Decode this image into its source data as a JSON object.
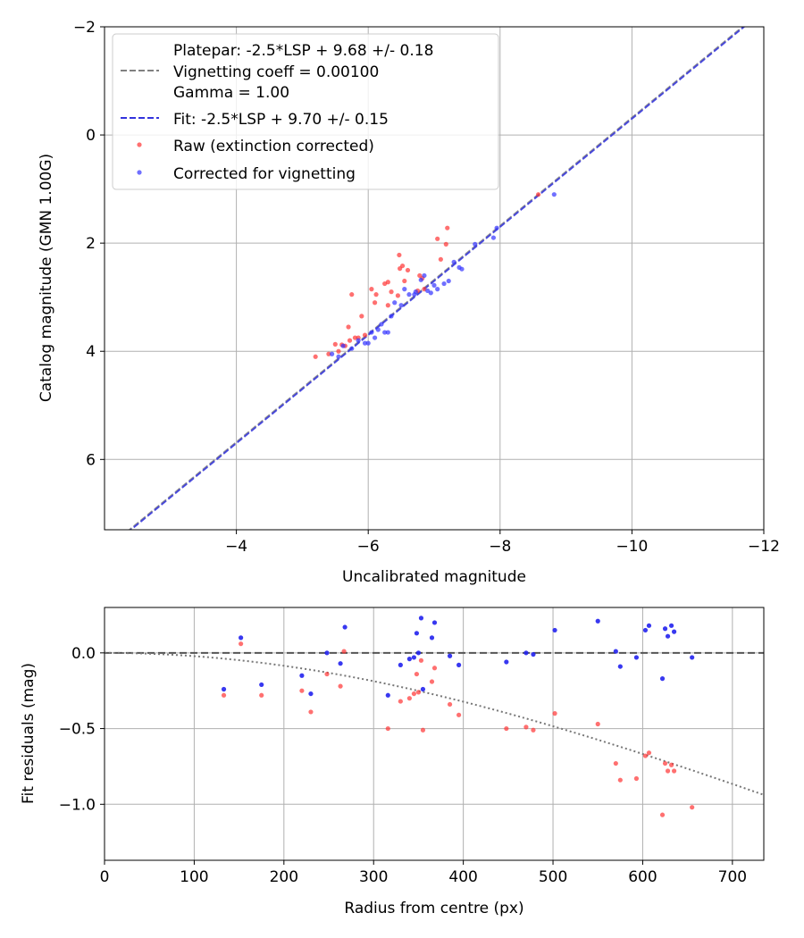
{
  "chart_data": [
    {
      "type": "scatter",
      "xlabel": "Uncalibrated magnitude",
      "ylabel": "Catalog magnitude (GMN 1.00G)",
      "xlim": [
        -2,
        -12
      ],
      "ylim": [
        7.3,
        -2
      ],
      "xticks": [
        -4,
        -6,
        -8,
        -10,
        -12
      ],
      "yticks": [
        -2,
        0,
        2,
        4,
        6
      ],
      "grid": true,
      "legend": {
        "placement": "top-left",
        "platepar_lines": [
          "Platepar: -2.5*LSP + 9.68 +/- 0.18",
          "Vignetting coeff = 0.00100",
          "Gamma = 1.00"
        ],
        "fit_label": "Fit: -2.5*LSP + 9.70 +/- 0.15",
        "raw_label": "Raw (extinction corrected)",
        "corrected_label": "Corrected for vignetting"
      },
      "lines": [
        {
          "name": "Platepar",
          "slope": 1,
          "intercept": 9.68,
          "color": "#808080",
          "style": "dashed"
        },
        {
          "name": "Fit",
          "slope": 1,
          "intercept": 9.7,
          "color": "#3333dd",
          "style": "dashed"
        }
      ],
      "series": [
        {
          "name": "Raw (extinction corrected)",
          "color": "#ff3333",
          "points": [
            [
              -5.2,
              4.1
            ],
            [
              -5.4,
              4.05
            ],
            [
              -5.5,
              3.87
            ],
            [
              -5.55,
              4.0
            ],
            [
              -5.6,
              3.88
            ],
            [
              -5.65,
              3.9
            ],
            [
              -5.7,
              3.55
            ],
            [
              -5.72,
              3.8
            ],
            [
              -5.75,
              2.95
            ],
            [
              -5.8,
              3.75
            ],
            [
              -5.85,
              3.75
            ],
            [
              -5.9,
              3.35
            ],
            [
              -5.95,
              3.7
            ],
            [
              -6.05,
              2.85
            ],
            [
              -6.1,
              3.1
            ],
            [
              -6.12,
              2.95
            ],
            [
              -6.25,
              2.75
            ],
            [
              -6.3,
              2.72
            ],
            [
              -6.3,
              3.15
            ],
            [
              -6.35,
              2.9
            ],
            [
              -6.45,
              2.97
            ],
            [
              -6.47,
              2.22
            ],
            [
              -6.48,
              2.47
            ],
            [
              -6.52,
              2.42
            ],
            [
              -6.55,
              2.7
            ],
            [
              -6.6,
              2.5
            ],
            [
              -6.75,
              2.88
            ],
            [
              -6.78,
              2.6
            ],
            [
              -6.82,
              2.65
            ],
            [
              -6.85,
              2.85
            ],
            [
              -7.05,
              1.92
            ],
            [
              -7.1,
              2.3
            ],
            [
              -7.18,
              2.02
            ],
            [
              -7.2,
              1.72
            ],
            [
              -8.58,
              1.1
            ]
          ]
        },
        {
          "name": "Corrected for vignetting",
          "color": "#3333ff",
          "points": [
            [
              -5.45,
              4.05
            ],
            [
              -5.55,
              4.1
            ],
            [
              -5.62,
              3.9
            ],
            [
              -5.75,
              3.95
            ],
            [
              -5.85,
              3.8
            ],
            [
              -5.95,
              3.85
            ],
            [
              -6.0,
              3.85
            ],
            [
              -6.05,
              3.65
            ],
            [
              -6.1,
              3.75
            ],
            [
              -6.15,
              3.6
            ],
            [
              -6.2,
              3.5
            ],
            [
              -6.25,
              3.65
            ],
            [
              -6.3,
              3.65
            ],
            [
              -6.35,
              3.35
            ],
            [
              -6.4,
              3.1
            ],
            [
              -6.5,
              3.15
            ],
            [
              -6.55,
              2.85
            ],
            [
              -6.62,
              2.95
            ],
            [
              -6.7,
              2.95
            ],
            [
              -6.72,
              2.9
            ],
            [
              -6.8,
              2.68
            ],
            [
              -6.85,
              2.6
            ],
            [
              -6.9,
              2.88
            ],
            [
              -6.95,
              2.92
            ],
            [
              -7.0,
              2.78
            ],
            [
              -7.05,
              2.85
            ],
            [
              -7.15,
              2.75
            ],
            [
              -7.22,
              2.7
            ],
            [
              -7.3,
              2.35
            ],
            [
              -7.38,
              2.45
            ],
            [
              -7.42,
              2.48
            ],
            [
              -7.62,
              2.02
            ],
            [
              -7.9,
              1.9
            ],
            [
              -7.95,
              1.72
            ],
            [
              -8.82,
              1.1
            ]
          ]
        }
      ]
    },
    {
      "type": "scatter",
      "xlabel": "Radius from centre (px)",
      "ylabel": "Fit residuals (mag)",
      "xlim": [
        0,
        735
      ],
      "ylim": [
        -1.37,
        0.3
      ],
      "xticks": [
        0,
        100,
        200,
        300,
        400,
        500,
        600,
        700
      ],
      "yticks": [
        0.0,
        -0.5,
        -1.0
      ],
      "ytick_labels": [
        "0.0",
        "−0.5",
        "−1.0"
      ],
      "grid": true,
      "reference_line": {
        "y": 0,
        "color": "#555555",
        "style": "dashed"
      },
      "vignetting_curve": {
        "coeff": 0.001,
        "color": "#777777",
        "style": "dotted"
      },
      "series": [
        {
          "name": "Raw",
          "color": "#ff3333",
          "points": [
            [
              133,
              -0.28
            ],
            [
              152,
              0.06
            ],
            [
              175,
              -0.28
            ],
            [
              220,
              -0.25
            ],
            [
              230,
              -0.39
            ],
            [
              248,
              -0.14
            ],
            [
              263,
              -0.22
            ],
            [
              267,
              0.01
            ],
            [
              316,
              -0.5
            ],
            [
              330,
              -0.32
            ],
            [
              340,
              -0.3
            ],
            [
              345,
              -0.27
            ],
            [
              348,
              -0.14
            ],
            [
              350,
              -0.26
            ],
            [
              353,
              -0.05
            ],
            [
              355,
              -0.51
            ],
            [
              365,
              -0.19
            ],
            [
              368,
              -0.1
            ],
            [
              385,
              -0.34
            ],
            [
              395,
              -0.41
            ],
            [
              448,
              -0.5
            ],
            [
              470,
              -0.49
            ],
            [
              478,
              -0.51
            ],
            [
              502,
              -0.4
            ],
            [
              550,
              -0.47
            ],
            [
              570,
              -0.73
            ],
            [
              575,
              -0.84
            ],
            [
              593,
              -0.83
            ],
            [
              603,
              -0.68
            ],
            [
              607,
              -0.66
            ],
            [
              622,
              -1.07
            ],
            [
              625,
              -0.73
            ],
            [
              628,
              -0.78
            ],
            [
              632,
              -0.74
            ],
            [
              635,
              -0.78
            ],
            [
              655,
              -1.02
            ]
          ]
        },
        {
          "name": "Corrected",
          "color": "#2222ee",
          "points": [
            [
              133,
              -0.24
            ],
            [
              152,
              0.1
            ],
            [
              175,
              -0.21
            ],
            [
              220,
              -0.15
            ],
            [
              230,
              -0.27
            ],
            [
              248,
              0.0
            ],
            [
              263,
              -0.07
            ],
            [
              268,
              0.17
            ],
            [
              316,
              -0.28
            ],
            [
              330,
              -0.08
            ],
            [
              340,
              -0.04
            ],
            [
              345,
              -0.03
            ],
            [
              348,
              0.13
            ],
            [
              350,
              0.0
            ],
            [
              353,
              0.23
            ],
            [
              355,
              -0.24
            ],
            [
              365,
              0.1
            ],
            [
              368,
              0.2
            ],
            [
              385,
              -0.02
            ],
            [
              395,
              -0.08
            ],
            [
              448,
              -0.06
            ],
            [
              470,
              0.0
            ],
            [
              478,
              -0.01
            ],
            [
              502,
              0.15
            ],
            [
              550,
              0.21
            ],
            [
              570,
              0.01
            ],
            [
              575,
              -0.09
            ],
            [
              593,
              -0.03
            ],
            [
              603,
              0.15
            ],
            [
              607,
              0.18
            ],
            [
              622,
              -0.17
            ],
            [
              625,
              0.16
            ],
            [
              628,
              0.11
            ],
            [
              632,
              0.18
            ],
            [
              635,
              0.14
            ],
            [
              655,
              -0.03
            ]
          ]
        }
      ]
    }
  ]
}
